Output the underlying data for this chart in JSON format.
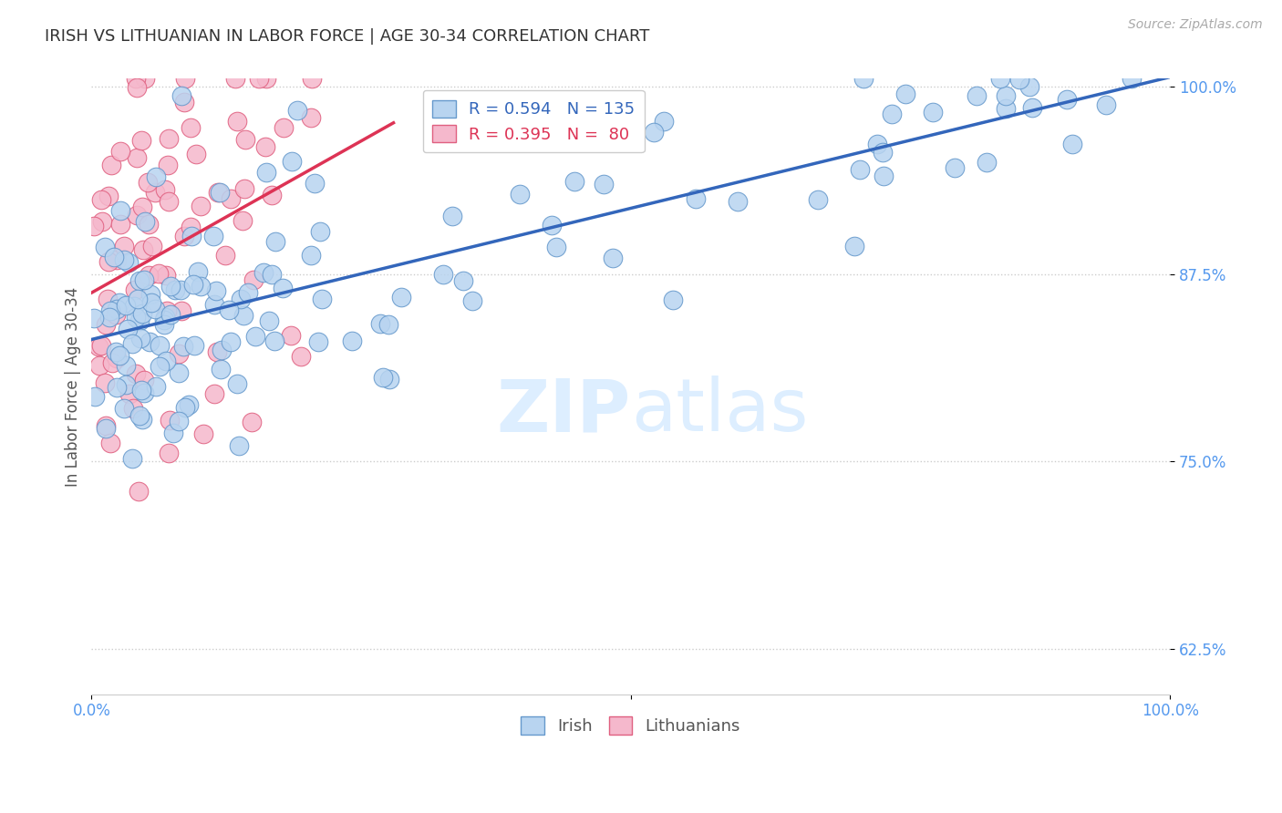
{
  "title": "IRISH VS LITHUANIAN IN LABOR FORCE | AGE 30-34 CORRELATION CHART",
  "source_text": "Source: ZipAtlas.com",
  "ylabel": "In Labor Force | Age 30-34",
  "xlim": [
    0.0,
    1.0
  ],
  "ylim": [
    0.595,
    1.005
  ],
  "ytick_values": [
    0.625,
    0.75,
    0.875,
    1.0
  ],
  "ytick_labels": [
    "62.5%",
    "75.0%",
    "87.5%",
    "100.0%"
  ],
  "xtick_values": [
    0.0,
    0.5,
    1.0
  ],
  "xtick_labels": [
    "0.0%",
    "",
    "100.0%"
  ],
  "legend_irish": "R = 0.594   N = 135",
  "legend_lith": "R = 0.395   N =  80",
  "irish_color": "#b8d4f0",
  "irish_edge_color": "#6699cc",
  "lith_color": "#f5b8cc",
  "lith_edge_color": "#e06080",
  "irish_line_color": "#3366bb",
  "lith_line_color": "#dd3355",
  "background_color": "#ffffff",
  "grid_color": "#cccccc",
  "title_color": "#333333",
  "tick_color": "#5599ee",
  "watermark_color": "#ddeeff",
  "irish_line_x0": 0.0,
  "irish_line_y0": 0.83,
  "irish_line_x1": 1.0,
  "irish_line_y1": 1.005,
  "lith_line_x0": 0.0,
  "lith_line_y0": 0.84,
  "lith_line_x1": 0.28,
  "lith_line_y1": 1.005
}
